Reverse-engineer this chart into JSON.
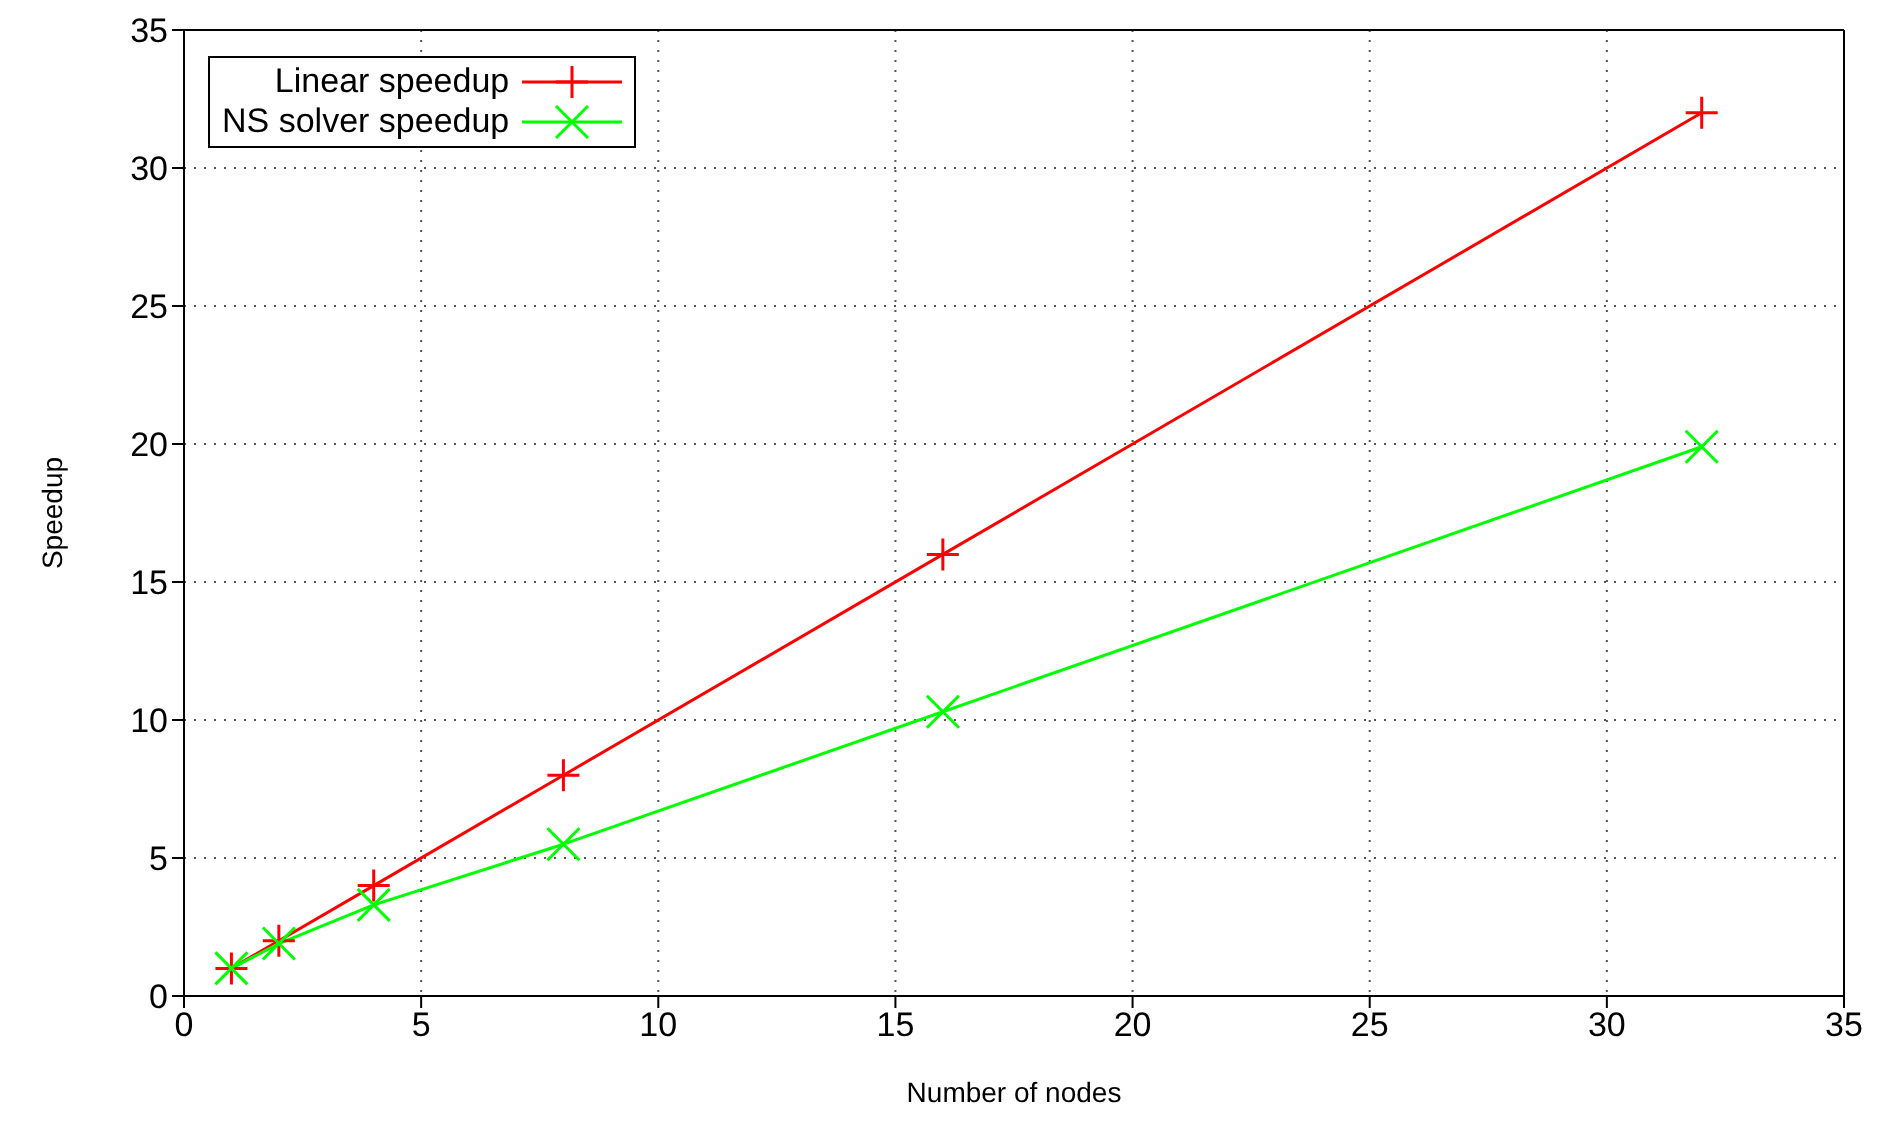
{
  "chart_data": {
    "type": "line",
    "xlabel": "Number of nodes",
    "ylabel": "Speedup",
    "x": [
      1,
      2,
      4,
      8,
      16,
      32
    ],
    "series": [
      {
        "name": "Linear speedup",
        "color": "#ff0000",
        "values": [
          1,
          2,
          4,
          8,
          16,
          32
        ],
        "marker": "cross"
      },
      {
        "name": "NS solver speedup",
        "color": "#00ff00",
        "values": [
          1,
          1.9,
          3.3,
          5.5,
          10.3,
          19.9
        ],
        "marker": "x"
      }
    ],
    "xlim": [
      0,
      35
    ],
    "xticks": [
      0,
      5,
      10,
      15,
      20,
      25,
      30,
      35
    ],
    "ylim": [
      0,
      35
    ],
    "yticks": [
      0,
      5,
      10,
      15,
      20,
      25,
      30,
      35
    ],
    "grid": true,
    "legend": "top left"
  }
}
